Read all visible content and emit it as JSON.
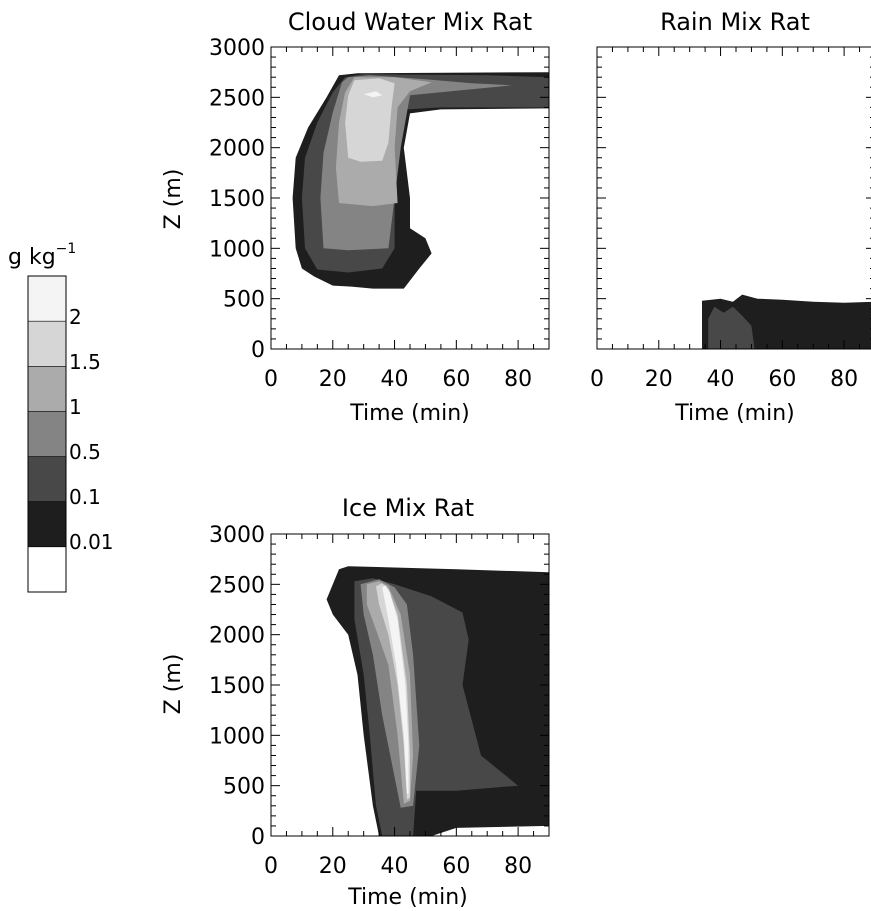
{
  "colorbar": {
    "unit_base": "g kg",
    "unit_exp": "−1",
    "levels": [
      "2",
      "1.5",
      "1",
      "0.5",
      "0.1",
      "0.01"
    ],
    "shades": [
      "#f4f4f4",
      "#d6d6d6",
      "#ababab",
      "#848484",
      "#484848",
      "#1e1e1e",
      "#ffffff"
    ]
  },
  "chart_data": [
    {
      "type": "contour",
      "title": "Cloud Water Mix Rat",
      "xlabel": "Time (min)",
      "ylabel": "Z (m)",
      "xlim": [
        0,
        90
      ],
      "ylim": [
        0,
        3000
      ],
      "x_ticks": [
        0,
        20,
        40,
        60,
        80
      ],
      "y_ticks": [
        0,
        500,
        1000,
        1500,
        2000,
        2500,
        3000
      ],
      "regions": [
        {
          "level": 0.01,
          "shade": 5,
          "outline": [
            [
              22,
              2720
            ],
            [
              28,
              2740
            ],
            [
              90,
              2750
            ],
            [
              90,
              2390
            ],
            [
              55,
              2380
            ],
            [
              45,
              2340
            ],
            [
              43,
              2000
            ],
            [
              45,
              1500
            ],
            [
              45,
              1200
            ],
            [
              50,
              1100
            ],
            [
              52,
              950
            ],
            [
              48,
              800
            ],
            [
              43,
              600
            ],
            [
              33,
              600
            ],
            [
              26,
              620
            ],
            [
              20,
              630
            ],
            [
              14,
              720
            ],
            [
              10,
              800
            ],
            [
              8,
              1000
            ],
            [
              7,
              1500
            ],
            [
              8,
              1900
            ],
            [
              12,
              2200
            ],
            [
              18,
              2500
            ],
            [
              22,
              2720
            ]
          ]
        },
        {
          "level": 0.1,
          "shade": 4,
          "outline": [
            [
              24,
              2700
            ],
            [
              30,
              2730
            ],
            [
              70,
              2720
            ],
            [
              90,
              2700
            ],
            [
              90,
              2400
            ],
            [
              55,
              2400
            ],
            [
              44,
              2380
            ],
            [
              42,
              2000
            ],
            [
              40,
              1500
            ],
            [
              40,
              1000
            ],
            [
              36,
              800
            ],
            [
              25,
              760
            ],
            [
              15,
              790
            ],
            [
              11,
              1000
            ],
            [
              10,
              1500
            ],
            [
              11,
              1900
            ],
            [
              15,
              2250
            ],
            [
              20,
              2550
            ],
            [
              24,
              2700
            ]
          ]
        },
        {
          "level": 0.5,
          "shade": 3,
          "outline": [
            [
              25,
              2700
            ],
            [
              32,
              2720
            ],
            [
              50,
              2680
            ],
            [
              65,
              2640
            ],
            [
              78,
              2620
            ],
            [
              65,
              2580
            ],
            [
              45,
              2520
            ],
            [
              42,
              2000
            ],
            [
              40,
              1500
            ],
            [
              38,
              1000
            ],
            [
              25,
              980
            ],
            [
              17,
              1000
            ],
            [
              16,
              1500
            ],
            [
              17,
              1950
            ],
            [
              20,
              2350
            ],
            [
              23,
              2650
            ],
            [
              25,
              2700
            ]
          ]
        },
        {
          "level": 1,
          "shade": 2,
          "outline": [
            [
              27,
              2700
            ],
            [
              40,
              2700
            ],
            [
              52,
              2650
            ],
            [
              45,
              2560
            ],
            [
              41,
              2400
            ],
            [
              40,
              2000
            ],
            [
              41,
              1450
            ],
            [
              33,
              1420
            ],
            [
              22,
              1450
            ],
            [
              21,
              1800
            ],
            [
              22,
              2250
            ],
            [
              24,
              2550
            ],
            [
              27,
              2700
            ]
          ]
        },
        {
          "level": 1.5,
          "shade": 1,
          "outline": [
            [
              27,
              2670
            ],
            [
              35,
              2690
            ],
            [
              40,
              2640
            ],
            [
              39,
              2400
            ],
            [
              38,
              2050
            ],
            [
              36,
              1870
            ],
            [
              29,
              1860
            ],
            [
              25,
              1900
            ],
            [
              24,
              2250
            ],
            [
              25,
              2520
            ],
            [
              27,
              2670
            ]
          ]
        },
        {
          "level": 2,
          "shade": 0,
          "outline": [
            [
              30,
              2530
            ],
            [
              34,
              2560
            ],
            [
              36,
              2520
            ],
            [
              33,
              2500
            ],
            [
              30,
              2530
            ]
          ]
        }
      ]
    },
    {
      "type": "contour",
      "title": "Rain Mix Rat",
      "xlabel": "Time (min)",
      "ylabel": "",
      "xlim": [
        0,
        90
      ],
      "ylim": [
        0,
        3000
      ],
      "x_ticks": [
        0,
        20,
        40,
        60,
        80
      ],
      "y_ticks": [
        0,
        500,
        1000,
        1500,
        2000,
        2500,
        3000
      ],
      "regions": [
        {
          "level": 0.01,
          "shade": 5,
          "outline": [
            [
              34,
              0
            ],
            [
              34,
              480
            ],
            [
              40,
              500
            ],
            [
              44,
              470
            ],
            [
              47,
              540
            ],
            [
              52,
              500
            ],
            [
              60,
              490
            ],
            [
              70,
              470
            ],
            [
              80,
              460
            ],
            [
              90,
              470
            ],
            [
              90,
              0
            ],
            [
              34,
              0
            ]
          ]
        },
        {
          "level": 0.1,
          "shade": 4,
          "outline": [
            [
              36,
              0
            ],
            [
              36,
              300
            ],
            [
              38,
              420
            ],
            [
              41,
              360
            ],
            [
              44,
              420
            ],
            [
              47,
              330
            ],
            [
              50,
              230
            ],
            [
              51,
              0
            ],
            [
              36,
              0
            ]
          ]
        }
      ]
    },
    {
      "type": "contour",
      "title": "Ice Mix Rat",
      "xlabel": "Time (min)",
      "ylabel": "Z (m)",
      "xlim": [
        0,
        90
      ],
      "ylim": [
        0,
        3000
      ],
      "x_ticks": [
        0,
        20,
        40,
        60,
        80
      ],
      "y_ticks": [
        0,
        500,
        1000,
        1500,
        2000,
        2500,
        3000
      ],
      "regions": [
        {
          "level": 0.01,
          "shade": 5,
          "outline": [
            [
              22,
              2650
            ],
            [
              25,
              2680
            ],
            [
              60,
              2650
            ],
            [
              90,
              2620
            ],
            [
              90,
              100
            ],
            [
              60,
              80
            ],
            [
              52,
              0
            ],
            [
              35,
              0
            ],
            [
              33,
              300
            ],
            [
              30,
              1000
            ],
            [
              28,
              1600
            ],
            [
              25,
              2000
            ],
            [
              20,
              2200
            ],
            [
              18,
              2350
            ],
            [
              22,
              2650
            ]
          ]
        },
        {
          "level": 0.1,
          "shade": 4,
          "outline": [
            [
              27,
              2530
            ],
            [
              33,
              2560
            ],
            [
              40,
              2500
            ],
            [
              52,
              2380
            ],
            [
              62,
              2220
            ],
            [
              64,
              1950
            ],
            [
              62,
              1500
            ],
            [
              68,
              800
            ],
            [
              80,
              500
            ],
            [
              60,
              450
            ],
            [
              47,
              450
            ],
            [
              46,
              0
            ],
            [
              36,
              0
            ],
            [
              34,
              300
            ],
            [
              32,
              1000
            ],
            [
              30,
              1600
            ],
            [
              27,
              2150
            ],
            [
              27,
              2530
            ]
          ]
        },
        {
          "level": 0.5,
          "shade": 3,
          "outline": [
            [
              29,
              2500
            ],
            [
              35,
              2550
            ],
            [
              40,
              2470
            ],
            [
              44,
              2300
            ],
            [
              46,
              1800
            ],
            [
              48,
              900
            ],
            [
              46,
              300
            ],
            [
              42,
              280
            ],
            [
              36,
              1200
            ],
            [
              33,
              1800
            ],
            [
              30,
              2200
            ],
            [
              29,
              2500
            ]
          ]
        },
        {
          "level": 1,
          "shade": 2,
          "outline": [
            [
              31,
              2500
            ],
            [
              35,
              2530
            ],
            [
              38,
              2480
            ],
            [
              42,
              2200
            ],
            [
              45,
              1600
            ],
            [
              46,
              800
            ],
            [
              45,
              350
            ],
            [
              43,
              320
            ],
            [
              41,
              1000
            ],
            [
              38,
              1700
            ],
            [
              34,
              2050
            ],
            [
              31,
              2300
            ],
            [
              31,
              2500
            ]
          ]
        },
        {
          "level": 1.5,
          "shade": 1,
          "outline": [
            [
              34,
              2480
            ],
            [
              36,
              2510
            ],
            [
              38,
              2450
            ],
            [
              41,
              2200
            ],
            [
              44,
              1500
            ],
            [
              45,
              800
            ],
            [
              45,
              380
            ],
            [
              44,
              360
            ],
            [
              43,
              900
            ],
            [
              41,
              1500
            ],
            [
              38,
              2000
            ],
            [
              35,
              2300
            ],
            [
              34,
              2480
            ]
          ]
        },
        {
          "level": 2,
          "shade": 0,
          "outline": [
            [
              36,
              2470
            ],
            [
              37,
              2490
            ],
            [
              38.5,
              2420
            ],
            [
              41,
              2150
            ],
            [
              43.5,
              1500
            ],
            [
              44.5,
              900
            ],
            [
              44.5,
              420
            ],
            [
              44,
              420
            ],
            [
              43,
              1000
            ],
            [
              40.5,
              1700
            ],
            [
              38,
              2150
            ],
            [
              36,
              2470
            ]
          ]
        }
      ]
    }
  ]
}
